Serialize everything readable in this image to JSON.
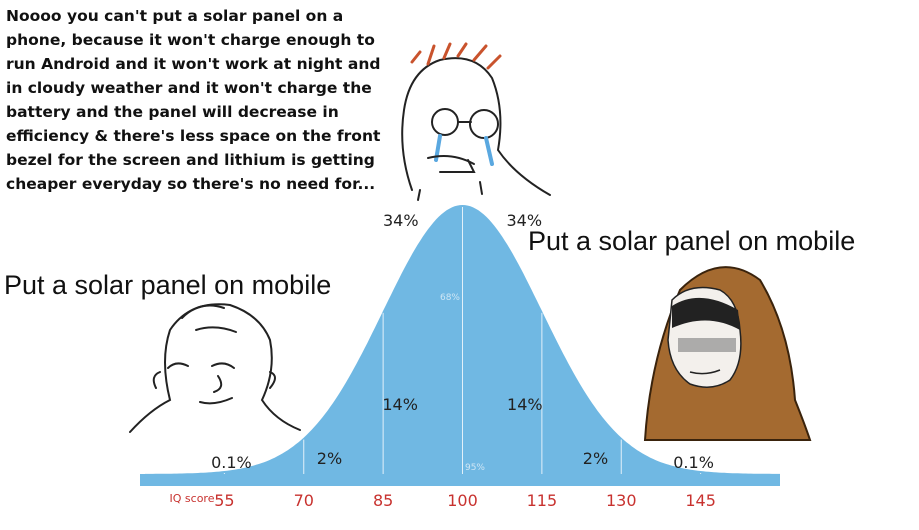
{
  "captions": {
    "top": "Noooo you can't put a solar panel on a\nphone, because it won't charge enough to\nrun Android and it won't work at night and\nin cloudy weather and it won't charge the\nbattery and the panel will decrease in\nefficiency & there's less space on the front\nbezel for the screen and lithium is getting\ncheaper everyday so there's no need for...",
    "left": "Put a solar panel on mobile",
    "right": "Put a solar panel on mobile"
  },
  "chart_data": {
    "type": "area",
    "xlabel": "IQ score",
    "x_ticks": [
      55,
      70,
      85,
      100,
      115,
      130,
      145
    ],
    "xlim": [
      40,
      160
    ],
    "mean": 100,
    "sd": 15,
    "region_labels": [
      {
        "text": "0.1%",
        "x": 62
      },
      {
        "text": "2%",
        "x": 76
      },
      {
        "text": "14%",
        "x": 92
      },
      {
        "text": "34%",
        "x": 94
      },
      {
        "text": "34%",
        "x": 106
      },
      {
        "text": "14%",
        "x": 108
      },
      {
        "text": "2%",
        "x": 124
      },
      {
        "text": "0.1%",
        "x": 138
      }
    ],
    "interval_labels": [
      {
        "text": "68%"
      },
      {
        "text": "95%"
      }
    ]
  },
  "colors": {
    "curve_fill": "#70b8e3",
    "tick_label": "#c8322f",
    "divider": "#ffffff"
  }
}
